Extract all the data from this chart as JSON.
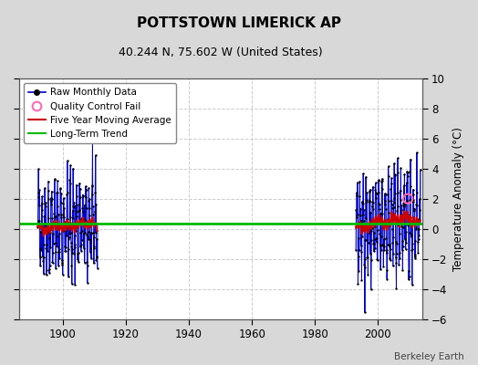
{
  "title": "POTTSTOWN LIMERICK AP",
  "subtitle": "40.244 N, 75.602 W (United States)",
  "ylabel": "Temperature Anomaly (°C)",
  "attribution": "Berkeley Earth",
  "xlim": [
    1886,
    2014
  ],
  "ylim": [
    -6,
    10
  ],
  "yticks": [
    -6,
    -4,
    -2,
    0,
    2,
    4,
    6,
    8,
    10
  ],
  "xticks": [
    1900,
    1920,
    1940,
    1960,
    1980,
    2000
  ],
  "long_term_trend_y": 0.35,
  "background_color": "#d8d8d8",
  "plot_background": "#ffffff",
  "grid_color": "#cccccc",
  "blue_line_color": "#8899dd",
  "dark_blue_color": "#0000cc",
  "red_line_color": "#cc0000",
  "green_line_color": "#00bb00",
  "qc_fail_color": "#ff69b4",
  "period1_start": 1892.0,
  "period1_end": 1910.917,
  "period2_start": 1993.0,
  "period2_end": 2013.5,
  "seed": 42
}
